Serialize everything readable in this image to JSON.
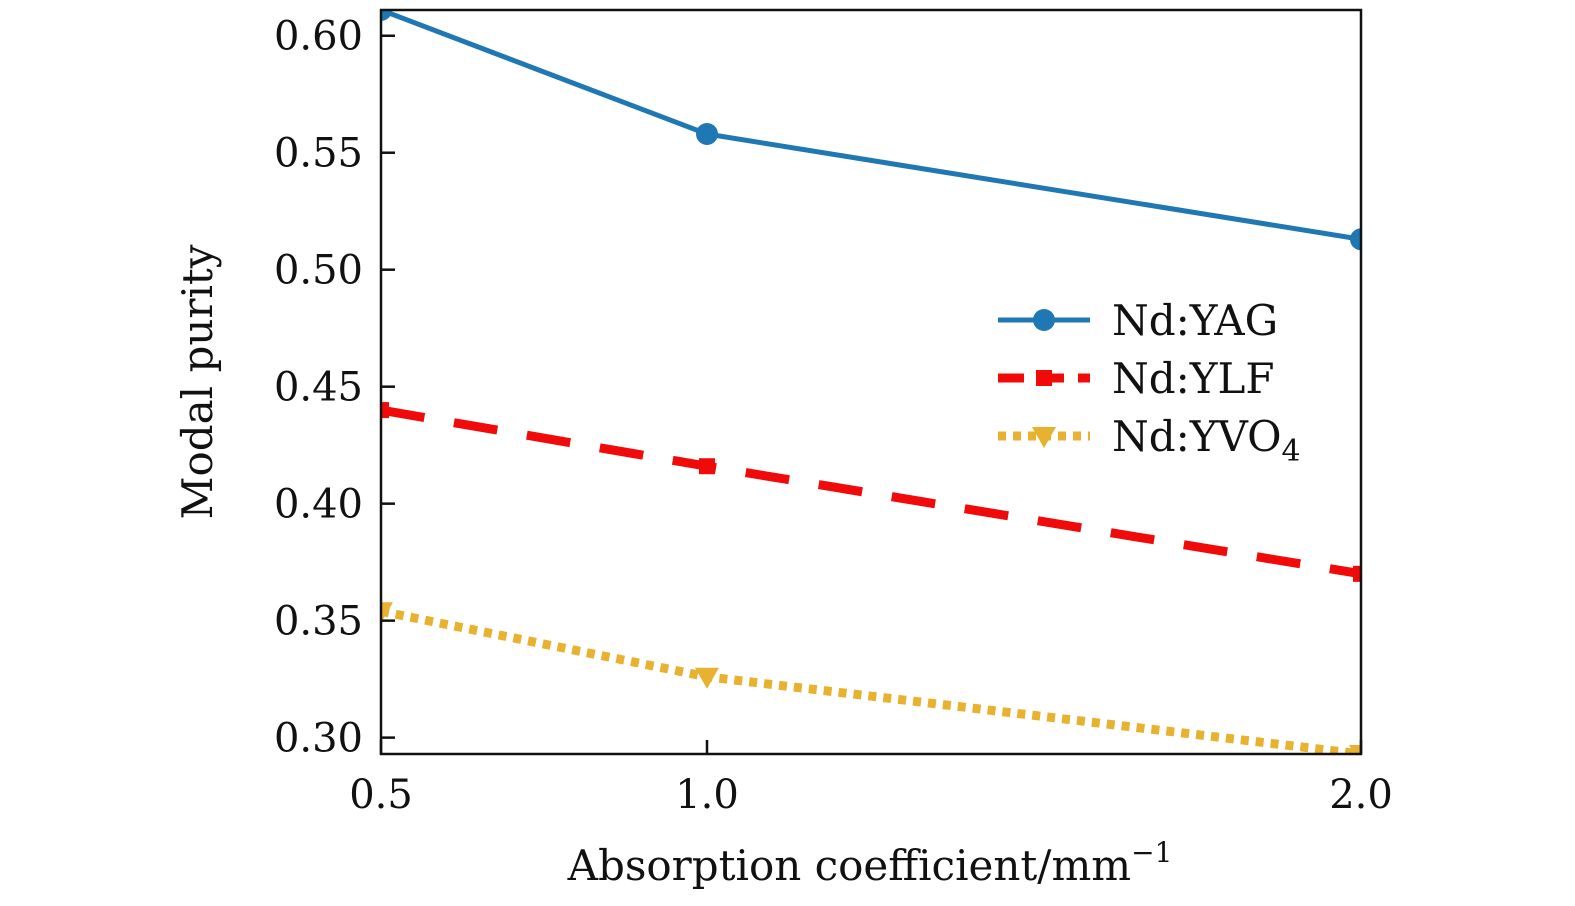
{
  "chart_data": {
    "type": "line",
    "title": "",
    "xlabel": "Absorption coefficient/mm",
    "xlabel_sup": "−1",
    "ylabel": "Modal purity",
    "x": [
      0.5,
      1.0,
      2.0
    ],
    "x_tick_labels": [
      "0.5",
      "1.0",
      "2.0"
    ],
    "y_ticks": [
      0.3,
      0.35,
      0.4,
      0.45,
      0.5,
      0.55,
      0.6
    ],
    "y_tick_labels": [
      "0.30",
      "0.35",
      "0.40",
      "0.45",
      "0.50",
      "0.55",
      "0.60"
    ],
    "ylim": [
      0.293,
      0.611
    ],
    "grid": false,
    "legend_position": "center-right",
    "series": [
      {
        "name": "Nd:YAG",
        "label_main": "Nd:YAG",
        "label_sub": "",
        "values": [
          0.611,
          0.558,
          0.513
        ],
        "color": "#1f77b4",
        "style": "solid",
        "marker": "circle"
      },
      {
        "name": "Nd:YLF",
        "label_main": "Nd:YLF",
        "label_sub": "",
        "values": [
          0.44,
          0.416,
          0.37
        ],
        "color": "#f00a0a",
        "style": "dashed",
        "marker": "square"
      },
      {
        "name": "Nd:YVO4",
        "label_main": "Nd:YVO",
        "label_sub": "4",
        "values": [
          0.354,
          0.326,
          0.293
        ],
        "color": "#e8b230",
        "style": "dotted",
        "marker": "triangle-down"
      }
    ]
  }
}
